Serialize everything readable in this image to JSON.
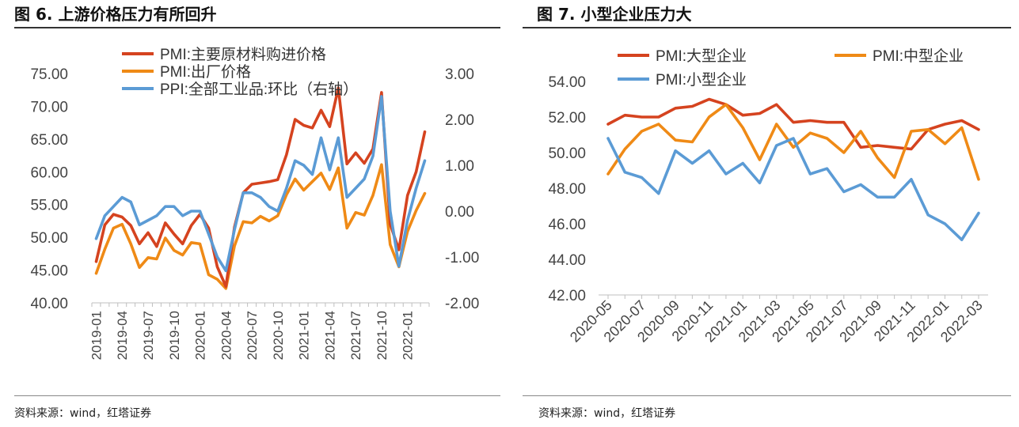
{
  "left": {
    "title": "图 6. 上游价格压力有所回升",
    "source": "资料来源：wind，红塔证券"
  },
  "right": {
    "title": "图 7. 小型企业压力大",
    "source": "资料来源：wind，红塔证券"
  },
  "colors": {
    "red": "#d5431f",
    "orange": "#ef8a16",
    "blue": "#5b9bd5"
  },
  "chart_data": [
    {
      "type": "line",
      "months": [
        "2019-01",
        "2019-02",
        "2019-03",
        "2019-04",
        "2019-05",
        "2019-06",
        "2019-07",
        "2019-08",
        "2019-09",
        "2019-10",
        "2019-11",
        "2019-12",
        "2020-01",
        "2020-02",
        "2020-03",
        "2020-04",
        "2020-05",
        "2020-06",
        "2020-07",
        "2020-08",
        "2020-09",
        "2020-10",
        "2020-11",
        "2020-12",
        "2021-01",
        "2021-02",
        "2021-03",
        "2021-04",
        "2021-05",
        "2021-06",
        "2021-07",
        "2021-08",
        "2021-09",
        "2021-10",
        "2021-11",
        "2021-12",
        "2022-01",
        "2022-02",
        "2022-03"
      ],
      "tick_labels": [
        "2019-01",
        "2019-04",
        "2019-07",
        "2019-10",
        "2020-01",
        "2020-04",
        "2020-07",
        "2020-10",
        "2021-01",
        "2021-04",
        "2021-07",
        "2021-10",
        "2022-01"
      ],
      "y_left": {
        "ylim": [
          40,
          75
        ],
        "ticks": [
          "40.00",
          "45.00",
          "50.00",
          "55.00",
          "60.00",
          "65.00",
          "70.00",
          "75.00"
        ]
      },
      "y_right": {
        "ylim": [
          -2,
          3
        ],
        "ticks": [
          "-2.00",
          "-1.00",
          "0.00",
          "1.00",
          "2.00",
          "3.00"
        ]
      },
      "series": [
        {
          "name": "PMI:主要原材料购进价格",
          "axis": "left",
          "color": "red",
          "values": [
            46.3,
            51.9,
            53.5,
            53.1,
            51.8,
            49.0,
            50.7,
            48.6,
            52.2,
            50.5,
            49.0,
            51.8,
            53.5,
            51.4,
            45.5,
            42.5,
            51.6,
            56.8,
            58.1,
            58.3,
            58.5,
            58.8,
            62.6,
            68.0,
            67.1,
            66.7,
            69.4,
            66.9,
            72.8,
            61.2,
            62.9,
            61.3,
            63.5,
            72.1,
            52.0,
            48.1,
            56.4,
            60.0,
            66.1
          ]
        },
        {
          "name": "PMI:出厂价格",
          "axis": "left",
          "color": "orange",
          "values": [
            44.5,
            48.2,
            51.4,
            52.0,
            49.0,
            45.4,
            46.9,
            46.7,
            49.9,
            48.0,
            47.3,
            49.2,
            49.0,
            44.3,
            43.6,
            42.2,
            48.7,
            52.4,
            52.2,
            53.2,
            52.5,
            53.3,
            56.5,
            58.9,
            57.2,
            58.5,
            59.8,
            57.3,
            60.6,
            51.4,
            53.8,
            53.4,
            56.4,
            61.1,
            48.9,
            45.5,
            50.9,
            54.1,
            56.7
          ]
        },
        {
          "name": "PPI:全部工业品:环比（右轴）",
          "axis": "right",
          "color": "blue",
          "values": [
            -0.6,
            -0.1,
            0.1,
            0.3,
            0.2,
            -0.3,
            -0.2,
            -0.1,
            0.1,
            0.1,
            -0.1,
            0.0,
            0.0,
            -0.5,
            -1.0,
            -1.3,
            -0.4,
            0.4,
            0.4,
            0.3,
            0.1,
            0.0,
            0.5,
            1.1,
            1.0,
            0.8,
            1.6,
            0.9,
            1.6,
            0.3,
            0.5,
            0.7,
            1.2,
            2.5,
            0.0,
            -1.2,
            -0.2,
            0.5,
            1.1
          ]
        }
      ]
    },
    {
      "type": "line",
      "months": [
        "2020-05",
        "2020-06",
        "2020-07",
        "2020-08",
        "2020-09",
        "2020-10",
        "2020-11",
        "2020-12",
        "2021-01",
        "2021-02",
        "2021-03",
        "2021-04",
        "2021-05",
        "2021-06",
        "2021-07",
        "2021-08",
        "2021-09",
        "2021-10",
        "2021-11",
        "2021-12",
        "2022-01",
        "2022-02",
        "2022-03"
      ],
      "tick_labels": [
        "2020-05",
        "2020-07",
        "2020-09",
        "2020-11",
        "2021-01",
        "2021-03",
        "2021-05",
        "2021-07",
        "2021-09",
        "2021-11",
        "2022-01",
        "2022-03"
      ],
      "y": {
        "ylim": [
          42,
          54
        ],
        "ticks": [
          "42.00",
          "44.00",
          "46.00",
          "48.00",
          "50.00",
          "52.00",
          "54.00"
        ]
      },
      "series": [
        {
          "name": "PMI:大型企业",
          "color": "red",
          "values": [
            51.6,
            52.1,
            52.0,
            52.0,
            52.5,
            52.6,
            53.0,
            52.7,
            52.1,
            52.2,
            52.7,
            51.7,
            51.8,
            51.7,
            51.7,
            50.3,
            50.4,
            50.3,
            50.2,
            51.3,
            51.6,
            51.8,
            51.3
          ]
        },
        {
          "name": "PMI:中型企业",
          "color": "orange",
          "values": [
            48.8,
            50.2,
            51.2,
            51.6,
            50.7,
            50.6,
            52.0,
            52.7,
            51.4,
            49.6,
            51.6,
            50.3,
            51.1,
            50.8,
            50.0,
            51.2,
            49.7,
            48.6,
            51.2,
            51.3,
            50.5,
            51.4,
            48.5
          ]
        },
        {
          "name": "PMI:小型企业",
          "color": "blue",
          "values": [
            50.8,
            48.9,
            48.6,
            47.7,
            50.1,
            49.4,
            50.1,
            48.8,
            49.4,
            48.3,
            50.4,
            50.8,
            48.8,
            49.1,
            47.8,
            48.2,
            47.5,
            47.5,
            48.5,
            46.5,
            46.0,
            45.1,
            46.6
          ]
        }
      ]
    }
  ]
}
